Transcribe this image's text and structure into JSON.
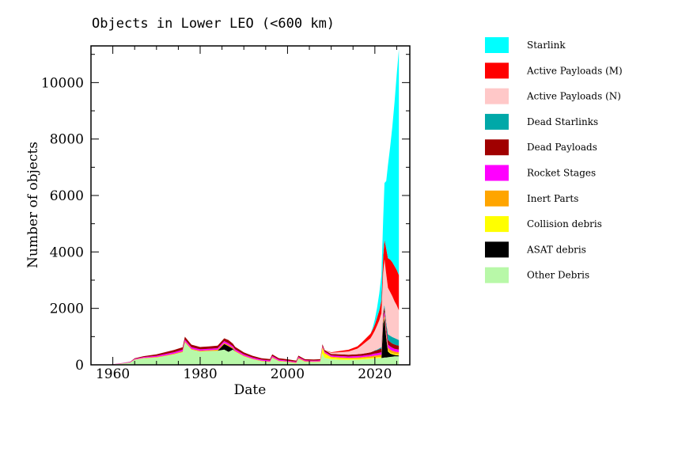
{
  "chart_data": {
    "type": "area",
    "title": "Objects in Lower LEO (<600 km)",
    "xlabel": "Date",
    "ylabel": "Number of objects",
    "xlim": [
      1955,
      2028
    ],
    "ylim": [
      0,
      11300
    ],
    "xticks": [
      1960,
      1980,
      2000,
      2020
    ],
    "yticks": [
      0,
      2000,
      4000,
      6000,
      8000,
      10000
    ],
    "legend_position": "right, outside plot",
    "x": [
      1958,
      1960,
      1962,
      1964,
      1965,
      1967,
      1970,
      1972,
      1974,
      1976,
      1976.5,
      1978,
      1980,
      1982,
      1984,
      1985.5,
      1986.5,
      1987.5,
      1988,
      1990,
      1992,
      1994,
      1996,
      1996.5,
      1998,
      2000,
      2002,
      2002.5,
      2004,
      2006,
      2007.5,
      2008,
      2008.5,
      2010,
      2012,
      2014,
      2016,
      2017,
      2018,
      2019,
      2019.5,
      2020,
      2020.5,
      2021,
      2021.5,
      2021.9,
      2022.2,
      2022.6,
      2023,
      2023.5,
      2024,
      2024.5,
      2025,
      2025.5
    ],
    "series": [
      {
        "name": "Starlink",
        "color": "#00ffff",
        "values": [
          0,
          0,
          0,
          0,
          0,
          0,
          0,
          0,
          0,
          0,
          0,
          0,
          0,
          0,
          0,
          0,
          0,
          0,
          0,
          0,
          0,
          0,
          0,
          0,
          0,
          0,
          0,
          0,
          0,
          0,
          0,
          0,
          0,
          0,
          0,
          0,
          0,
          0,
          0,
          0,
          60,
          180,
          350,
          600,
          900,
          1300,
          2000,
          2400,
          3300,
          4000,
          4800,
          5800,
          6900,
          8000
        ]
      },
      {
        "name": "Active Payloads (M)",
        "color": "#ff0000",
        "values": [
          0,
          0,
          0,
          0,
          0,
          0,
          0,
          0,
          0,
          0,
          0,
          0,
          0,
          0,
          0,
          0,
          0,
          0,
          0,
          0,
          0,
          0,
          0,
          0,
          0,
          0,
          0,
          0,
          0,
          0,
          0,
          0,
          0,
          20,
          40,
          60,
          80,
          100,
          130,
          160,
          180,
          220,
          280,
          350,
          450,
          550,
          700,
          900,
          1050,
          1150,
          1200,
          1250,
          1250,
          1250
        ]
      },
      {
        "name": "Active Payloads (N)",
        "color": "#ffc8c8",
        "values": [
          0,
          0,
          0,
          0,
          0,
          0,
          0,
          0,
          0,
          0,
          0,
          0,
          0,
          0,
          0,
          0,
          0,
          0,
          0,
          0,
          0,
          0,
          0,
          0,
          0,
          0,
          0,
          0,
          0,
          0,
          0,
          0,
          0,
          40,
          80,
          120,
          200,
          300,
          400,
          500,
          600,
          700,
          850,
          1000,
          1200,
          1400,
          1600,
          1700,
          1650,
          1550,
          1450,
          1300,
          1200,
          1050
        ]
      },
      {
        "name": "Dead Starlinks",
        "color": "#00a8a8",
        "values": [
          0,
          0,
          0,
          0,
          0,
          0,
          0,
          0,
          0,
          0,
          0,
          0,
          0,
          0,
          0,
          0,
          0,
          0,
          0,
          0,
          0,
          0,
          0,
          0,
          0,
          0,
          0,
          0,
          0,
          0,
          0,
          0,
          0,
          0,
          0,
          0,
          0,
          0,
          0,
          0,
          5,
          10,
          20,
          30,
          50,
          70,
          100,
          150,
          200,
          220,
          230,
          230,
          220,
          200
        ]
      },
      {
        "name": "Dead Payloads",
        "color": "#a00000",
        "values": [
          0,
          2,
          5,
          10,
          20,
          30,
          50,
          70,
          80,
          90,
          100,
          90,
          80,
          80,
          90,
          100,
          110,
          90,
          90,
          70,
          60,
          50,
          50,
          55,
          50,
          45,
          40,
          45,
          40,
          40,
          40,
          60,
          55,
          55,
          60,
          60,
          65,
          70,
          75,
          80,
          90,
          100,
          110,
          120,
          130,
          140,
          150,
          160,
          160,
          160,
          150,
          150,
          140,
          140
        ]
      },
      {
        "name": "Rocket Stages",
        "color": "#ff00ff",
        "values": [
          0,
          5,
          10,
          15,
          20,
          30,
          40,
          45,
          50,
          55,
          60,
          55,
          50,
          50,
          55,
          60,
          65,
          55,
          50,
          45,
          40,
          35,
          35,
          40,
          35,
          30,
          30,
          35,
          30,
          30,
          30,
          40,
          40,
          40,
          45,
          45,
          50,
          50,
          55,
          60,
          65,
          70,
          75,
          80,
          90,
          95,
          100,
          110,
          110,
          110,
          105,
          100,
          100,
          100
        ]
      },
      {
        "name": "Inert Parts",
        "color": "#ffa500",
        "values": [
          0,
          2,
          5,
          8,
          10,
          15,
          20,
          25,
          25,
          30,
          35,
          30,
          30,
          30,
          35,
          40,
          40,
          35,
          30,
          25,
          20,
          20,
          20,
          25,
          20,
          20,
          20,
          25,
          20,
          20,
          20,
          30,
          30,
          30,
          35,
          35,
          40,
          40,
          45,
          50,
          55,
          60,
          65,
          70,
          75,
          80,
          90,
          95,
          100,
          100,
          90,
          80,
          75,
          70
        ]
      },
      {
        "name": "Collision debris",
        "color": "#ffff00",
        "values": [
          0,
          0,
          0,
          0,
          0,
          0,
          0,
          0,
          0,
          0,
          0,
          0,
          0,
          0,
          0,
          0,
          0,
          0,
          0,
          0,
          0,
          0,
          0,
          0,
          0,
          0,
          0,
          0,
          0,
          0,
          0,
          200,
          150,
          60,
          50,
          45,
          40,
          40,
          40,
          40,
          40,
          40,
          40,
          40,
          40,
          40,
          40,
          40,
          40,
          40,
          40,
          40,
          40,
          40
        ]
      },
      {
        "name": "ASAT debris",
        "color": "#000000",
        "values": [
          0,
          0,
          0,
          0,
          0,
          0,
          0,
          0,
          0,
          0,
          0,
          0,
          0,
          0,
          0,
          200,
          200,
          30,
          0,
          0,
          0,
          0,
          0,
          0,
          0,
          0,
          0,
          0,
          0,
          0,
          0,
          0,
          0,
          0,
          0,
          0,
          0,
          0,
          0,
          0,
          0,
          0,
          0,
          0,
          0,
          1200,
          1400,
          700,
          200,
          120,
          80,
          50,
          40,
          30
        ]
      },
      {
        "name": "Other Debris",
        "color": "#b8f8a8",
        "values": [
          0,
          10,
          40,
          80,
          180,
          230,
          260,
          310,
          370,
          450,
          800,
          540,
          470,
          490,
          500,
          540,
          460,
          540,
          470,
          300,
          200,
          130,
          100,
          250,
          130,
          100,
          60,
          220,
          110,
          100,
          110,
          400,
          250,
          200,
          180,
          170,
          180,
          190,
          200,
          210,
          220,
          230,
          230,
          240,
          240,
          250,
          260,
          260,
          270,
          280,
          290,
          300,
          300,
          300
        ]
      }
    ]
  }
}
